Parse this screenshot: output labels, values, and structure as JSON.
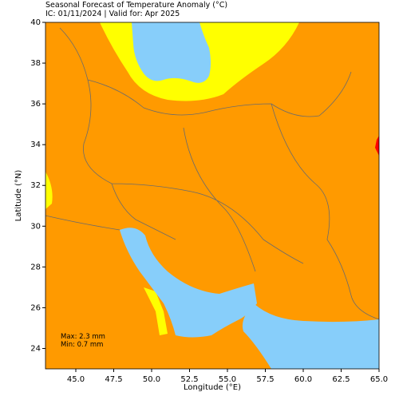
{
  "chart_data": {
    "type": "map",
    "title": "Seasonal Forecast of Temperature Anomaly (°C)",
    "subtitle": "IC: 01/11/2024 | Valid for: Apr 2025",
    "x_label": "Longitude (°E)",
    "y_label": "Latitude (°N)",
    "xlim": [
      43,
      65
    ],
    "ylim": [
      23,
      40
    ],
    "xticks": [
      {
        "value": 45,
        "label": "45.0"
      },
      {
        "value": 47.5,
        "label": "47.5"
      },
      {
        "value": 50,
        "label": "50.0"
      },
      {
        "value": 52.5,
        "label": "52.5"
      },
      {
        "value": 55,
        "label": "55.0"
      },
      {
        "value": 57.5,
        "label": "57.5"
      },
      {
        "value": 60,
        "label": "60.0"
      },
      {
        "value": 62.5,
        "label": "62.5"
      },
      {
        "value": 65,
        "label": "65.0"
      }
    ],
    "yticks": [
      24,
      26,
      28,
      30,
      32,
      34,
      36,
      38,
      40
    ],
    "annotations": [
      "Max: 2.3 mm",
      "Min: 0.7 mm"
    ]
  }
}
